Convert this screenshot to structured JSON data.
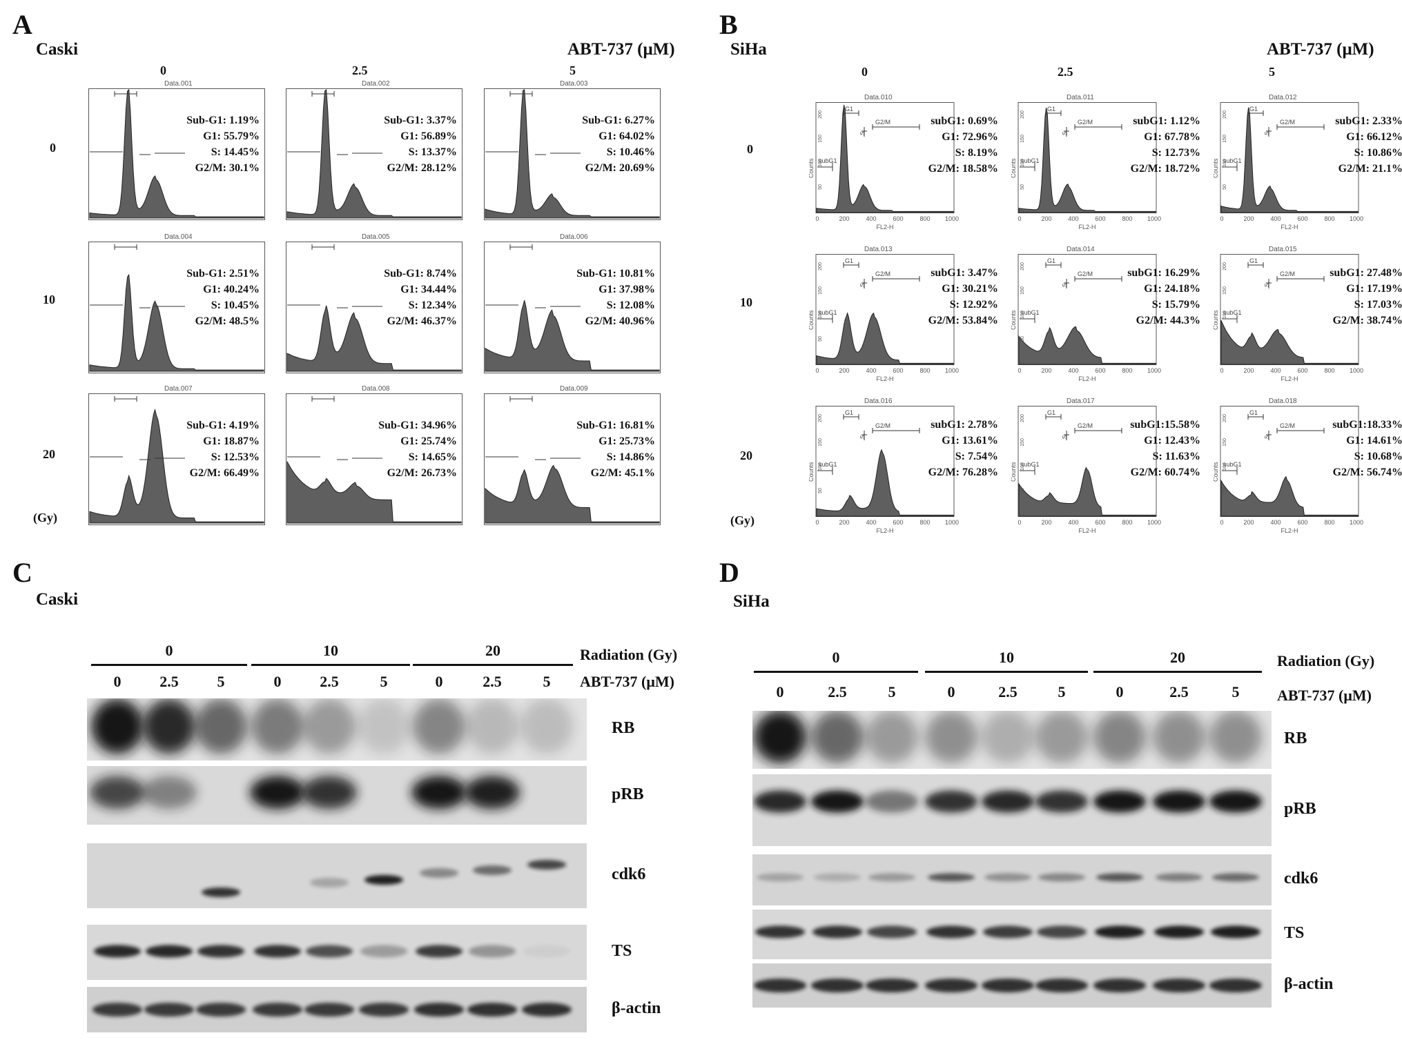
{
  "panel_a": {
    "letter": "A",
    "cell_line": "Caski",
    "drug": "ABT-737 (μM)",
    "col_headers": [
      "0",
      "2.5",
      "5"
    ],
    "row_headers": [
      "0",
      "10",
      "20"
    ],
    "unit_label": "(Gy)",
    "plot_titles": [
      "Data.001",
      "Data.002",
      "Data.003",
      "Data.004",
      "Data.005",
      "Data.006",
      "Data.007",
      "Data.008",
      "Data.009"
    ],
    "stats": [
      [
        "Sub-G1: 1.19%",
        "G1: 55.79%",
        "S: 14.45%",
        "G2/M: 30.1%"
      ],
      [
        "Sub-G1: 3.37%",
        "G1: 56.89%",
        "S: 13.37%",
        "G2/M: 28.12%"
      ],
      [
        "Sub-G1: 6.27%",
        "G1: 64.02%",
        "S: 10.46%",
        "G2/M: 20.69%"
      ],
      [
        "Sub-G1: 2.51%",
        "G1: 40.24%",
        "S: 10.45%",
        "G2/M: 48.5%"
      ],
      [
        "Sub-G1: 8.74%",
        "G1: 34.44%",
        "S: 12.34%",
        "G2/M: 46.37%"
      ],
      [
        "Sub-G1: 10.81%",
        "G1: 37.98%",
        "S: 12.08%",
        "G2/M: 40.96%"
      ],
      [
        "Sub-G1: 4.19%",
        "G1: 18.87%",
        "S: 12.53%",
        "G2/M: 66.49%"
      ],
      [
        "Sub-G1: 34.96%",
        "G1: 25.74%",
        "S: 14.65%",
        "G2/M: 26.73%"
      ],
      [
        "Sub-G1: 16.81%",
        "G1: 25.73%",
        "S: 14.86%",
        "G2/M: 45.1%"
      ]
    ]
  },
  "panel_b": {
    "letter": "B",
    "cell_line": "SiHa",
    "drug": "ABT-737 (μM)",
    "col_headers": [
      "0",
      "2.5",
      "5"
    ],
    "row_headers": [
      "0",
      "10",
      "20"
    ],
    "unit_label": "(Gy)",
    "x_axis_label": "FL2-H",
    "y_axis_label": "Counts",
    "x_ticks": [
      "0",
      "200",
      "400",
      "600",
      "800",
      "1000"
    ],
    "y_ticks": [
      "0",
      "50",
      "100",
      "150",
      "200"
    ],
    "gate_labels": [
      "G1",
      "S",
      "G2/M",
      "subG1"
    ],
    "plot_titles": [
      "Data.010",
      "Data.011",
      "Data.012",
      "Data.013",
      "Data.014",
      "Data.015",
      "Data.016",
      "Data.017",
      "Data.018"
    ],
    "stats": [
      [
        "subG1: 0.69%",
        "G1: 72.96%",
        "S: 8.19%",
        "G2/M: 18.58%"
      ],
      [
        "subG1: 1.12%",
        "G1: 67.78%",
        "S: 12.73%",
        "G2/M: 18.72%"
      ],
      [
        "subG1: 2.33%",
        "G1: 66.12%",
        "S: 10.86%",
        "G2/M: 21.1%"
      ],
      [
        "subG1: 3.47%",
        "G1: 30.21%",
        "S: 12.92%",
        "G2/M: 53.84%"
      ],
      [
        "subG1: 16.29%",
        "G1: 24.18%",
        "S: 15.79%",
        "G2/M: 44.3%"
      ],
      [
        "subG1: 27.48%",
        "G1: 17.19%",
        "S: 17.03%",
        "G2/M: 38.74%"
      ],
      [
        "subG1: 2.78%",
        "G1: 13.61%",
        "S: 7.54%",
        "G2/M: 76.28%"
      ],
      [
        "subG1:15.58%",
        "G1: 12.43%",
        "S: 11.63%",
        "G2/M: 60.74%"
      ],
      [
        "subG1:18.33%",
        "G1: 14.61%",
        "S: 10.68%",
        "G2/M: 56.74%"
      ]
    ]
  },
  "panel_c": {
    "letter": "C",
    "cell_line": "Caski",
    "radiation_label": "Radiation (Gy)",
    "drug_label": "ABT-737 (μM)",
    "radiation_groups": [
      "0",
      "10",
      "20"
    ],
    "drug_doses": [
      "0",
      "2.5",
      "5",
      "0",
      "2.5",
      "5",
      "0",
      "2.5",
      "5"
    ],
    "proteins": [
      "RB",
      "pRB",
      "cdk6",
      "TS",
      "β-actin"
    ]
  },
  "panel_d": {
    "letter": "D",
    "cell_line": "SiHa",
    "radiation_label": "Radiation (Gy)",
    "drug_label": "ABT-737 (μM)",
    "radiation_groups": [
      "0",
      "10",
      "20"
    ],
    "drug_doses": [
      "0",
      "2.5",
      "5",
      "0",
      "2.5",
      "5",
      "0",
      "2.5",
      "5"
    ],
    "proteins": [
      "RB",
      "pRB",
      "cdk6",
      "TS",
      "β-actin"
    ]
  },
  "colors": {
    "histogram_fill": "#5f5f5f",
    "band_dark": "#151515",
    "blot_bg": "#d4d4d4"
  }
}
